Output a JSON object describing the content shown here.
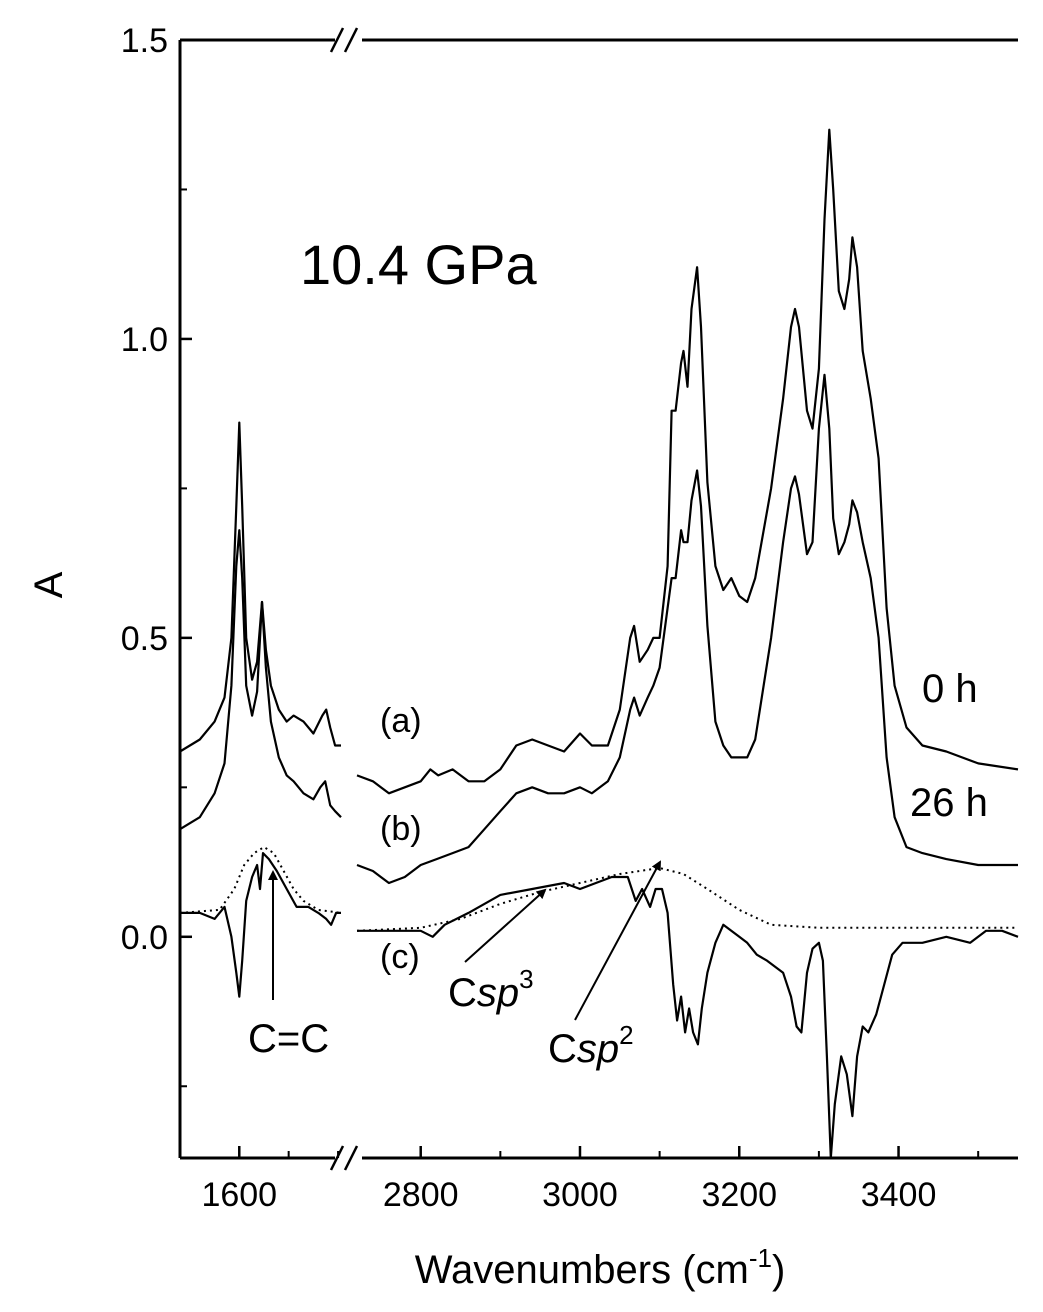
{
  "chart_data": {
    "type": "line",
    "title": "10.4 GPa",
    "xlabel": "Wavenumbers (cm",
    "xlabel_sup": "-1",
    "xlabel_close": ")",
    "ylabel": "A",
    "ylim": [
      -0.37,
      1.5
    ],
    "y_ticks": [
      {
        "value": 0.0,
        "label": "0.0"
      },
      {
        "value": 0.5,
        "label": "0.5"
      },
      {
        "value": 1.0,
        "label": "1.0"
      },
      {
        "value": 1.5,
        "label": "1.5"
      }
    ],
    "x_break": true,
    "x_segments": [
      {
        "xlim": [
          1540,
          1705
        ],
        "ticks": [
          {
            "value": 1600,
            "label": "1600"
          }
        ],
        "minor": [
          1650,
          1700
        ]
      },
      {
        "xlim": [
          2720,
          3550
        ],
        "ticks": [
          {
            "value": 2800,
            "label": "2800"
          },
          {
            "value": 3000,
            "label": "3000"
          },
          {
            "value": 3200,
            "label": "3200"
          },
          {
            "value": 3400,
            "label": "3400"
          }
        ],
        "minor": [
          2900,
          3100,
          3300,
          3500
        ]
      }
    ],
    "series": [
      {
        "label": "(a)",
        "time": "0 h",
        "style": "solid",
        "seg1": [
          [
            1540,
            0.31
          ],
          [
            1560,
            0.33
          ],
          [
            1575,
            0.36
          ],
          [
            1585,
            0.4
          ],
          [
            1592,
            0.5
          ],
          [
            1597,
            0.72
          ],
          [
            1600,
            0.86
          ],
          [
            1603,
            0.72
          ],
          [
            1607,
            0.5
          ],
          [
            1613,
            0.43
          ],
          [
            1618,
            0.46
          ],
          [
            1623,
            0.56
          ],
          [
            1627,
            0.48
          ],
          [
            1632,
            0.42
          ],
          [
            1640,
            0.38
          ],
          [
            1648,
            0.36
          ],
          [
            1655,
            0.37
          ],
          [
            1665,
            0.36
          ],
          [
            1675,
            0.34
          ],
          [
            1684,
            0.37
          ],
          [
            1688,
            0.38
          ],
          [
            1692,
            0.35
          ],
          [
            1697,
            0.32
          ],
          [
            1703,
            0.32
          ]
        ],
        "seg2": [
          [
            2720,
            0.27
          ],
          [
            2740,
            0.26
          ],
          [
            2760,
            0.24
          ],
          [
            2780,
            0.25
          ],
          [
            2800,
            0.26
          ],
          [
            2812,
            0.28
          ],
          [
            2822,
            0.27
          ],
          [
            2840,
            0.28
          ],
          [
            2860,
            0.26
          ],
          [
            2880,
            0.26
          ],
          [
            2900,
            0.28
          ],
          [
            2920,
            0.32
          ],
          [
            2940,
            0.33
          ],
          [
            2960,
            0.32
          ],
          [
            2980,
            0.31
          ],
          [
            3000,
            0.34
          ],
          [
            3015,
            0.32
          ],
          [
            3035,
            0.32
          ],
          [
            3050,
            0.38
          ],
          [
            3063,
            0.5
          ],
          [
            3068,
            0.52
          ],
          [
            3075,
            0.46
          ],
          [
            3085,
            0.48
          ],
          [
            3092,
            0.5
          ],
          [
            3100,
            0.5
          ],
          [
            3110,
            0.62
          ],
          [
            3115,
            0.88
          ],
          [
            3120,
            0.88
          ],
          [
            3127,
            0.96
          ],
          [
            3130,
            0.98
          ],
          [
            3135,
            0.92
          ],
          [
            3140,
            1.05
          ],
          [
            3147,
            1.12
          ],
          [
            3152,
            1.02
          ],
          [
            3160,
            0.76
          ],
          [
            3170,
            0.62
          ],
          [
            3180,
            0.58
          ],
          [
            3190,
            0.6
          ],
          [
            3200,
            0.57
          ],
          [
            3210,
            0.56
          ],
          [
            3220,
            0.6
          ],
          [
            3240,
            0.75
          ],
          [
            3255,
            0.9
          ],
          [
            3265,
            1.02
          ],
          [
            3270,
            1.05
          ],
          [
            3275,
            1.02
          ],
          [
            3285,
            0.88
          ],
          [
            3292,
            0.85
          ],
          [
            3300,
            0.95
          ],
          [
            3307,
            1.2
          ],
          [
            3313,
            1.35
          ],
          [
            3318,
            1.25
          ],
          [
            3325,
            1.08
          ],
          [
            3332,
            1.05
          ],
          [
            3338,
            1.1
          ],
          [
            3342,
            1.17
          ],
          [
            3348,
            1.12
          ],
          [
            3355,
            0.98
          ],
          [
            3365,
            0.9
          ],
          [
            3375,
            0.8
          ],
          [
            3385,
            0.55
          ],
          [
            3395,
            0.42
          ],
          [
            3410,
            0.35
          ],
          [
            3430,
            0.32
          ],
          [
            3460,
            0.31
          ],
          [
            3500,
            0.29
          ],
          [
            3550,
            0.28
          ]
        ]
      },
      {
        "label": "(b)",
        "time": "26 h",
        "style": "solid",
        "seg1": [
          [
            1540,
            0.18
          ],
          [
            1560,
            0.2
          ],
          [
            1575,
            0.24
          ],
          [
            1585,
            0.29
          ],
          [
            1592,
            0.42
          ],
          [
            1597,
            0.62
          ],
          [
            1600,
            0.68
          ],
          [
            1603,
            0.6
          ],
          [
            1607,
            0.42
          ],
          [
            1613,
            0.37
          ],
          [
            1618,
            0.41
          ],
          [
            1623,
            0.56
          ],
          [
            1627,
            0.45
          ],
          [
            1632,
            0.36
          ],
          [
            1640,
            0.3
          ],
          [
            1648,
            0.27
          ],
          [
            1655,
            0.26
          ],
          [
            1665,
            0.24
          ],
          [
            1675,
            0.23
          ],
          [
            1682,
            0.25
          ],
          [
            1687,
            0.26
          ],
          [
            1692,
            0.22
          ],
          [
            1697,
            0.21
          ],
          [
            1703,
            0.2
          ]
        ],
        "seg2": [
          [
            2720,
            0.12
          ],
          [
            2740,
            0.11
          ],
          [
            2760,
            0.09
          ],
          [
            2780,
            0.1
          ],
          [
            2800,
            0.12
          ],
          [
            2820,
            0.13
          ],
          [
            2840,
            0.14
          ],
          [
            2860,
            0.15
          ],
          [
            2880,
            0.18
          ],
          [
            2900,
            0.21
          ],
          [
            2920,
            0.24
          ],
          [
            2940,
            0.25
          ],
          [
            2960,
            0.24
          ],
          [
            2980,
            0.24
          ],
          [
            3000,
            0.25
          ],
          [
            3015,
            0.24
          ],
          [
            3035,
            0.26
          ],
          [
            3050,
            0.3
          ],
          [
            3063,
            0.38
          ],
          [
            3068,
            0.4
          ],
          [
            3075,
            0.37
          ],
          [
            3085,
            0.4
          ],
          [
            3092,
            0.42
          ],
          [
            3100,
            0.45
          ],
          [
            3110,
            0.55
          ],
          [
            3115,
            0.6
          ],
          [
            3120,
            0.6
          ],
          [
            3127,
            0.68
          ],
          [
            3130,
            0.66
          ],
          [
            3135,
            0.66
          ],
          [
            3140,
            0.73
          ],
          [
            3147,
            0.78
          ],
          [
            3152,
            0.72
          ],
          [
            3160,
            0.52
          ],
          [
            3170,
            0.36
          ],
          [
            3180,
            0.32
          ],
          [
            3190,
            0.3
          ],
          [
            3200,
            0.3
          ],
          [
            3210,
            0.3
          ],
          [
            3220,
            0.33
          ],
          [
            3240,
            0.5
          ],
          [
            3255,
            0.66
          ],
          [
            3265,
            0.75
          ],
          [
            3270,
            0.77
          ],
          [
            3275,
            0.74
          ],
          [
            3285,
            0.64
          ],
          [
            3292,
            0.66
          ],
          [
            3300,
            0.85
          ],
          [
            3307,
            0.94
          ],
          [
            3313,
            0.85
          ],
          [
            3318,
            0.7
          ],
          [
            3325,
            0.64
          ],
          [
            3332,
            0.66
          ],
          [
            3338,
            0.69
          ],
          [
            3342,
            0.73
          ],
          [
            3348,
            0.71
          ],
          [
            3355,
            0.66
          ],
          [
            3365,
            0.6
          ],
          [
            3375,
            0.5
          ],
          [
            3385,
            0.3
          ],
          [
            3395,
            0.2
          ],
          [
            3410,
            0.15
          ],
          [
            3430,
            0.14
          ],
          [
            3460,
            0.13
          ],
          [
            3500,
            0.12
          ],
          [
            3550,
            0.12
          ]
        ]
      },
      {
        "label": "(c)",
        "style": "solid",
        "seg1": [
          [
            1540,
            0.04
          ],
          [
            1560,
            0.04
          ],
          [
            1575,
            0.03
          ],
          [
            1585,
            0.05
          ],
          [
            1592,
            0.0
          ],
          [
            1597,
            -0.06
          ],
          [
            1600,
            -0.1
          ],
          [
            1603,
            -0.04
          ],
          [
            1607,
            0.06
          ],
          [
            1613,
            0.1
          ],
          [
            1618,
            0.12
          ],
          [
            1621,
            0.08
          ],
          [
            1624,
            0.14
          ],
          [
            1630,
            0.13
          ],
          [
            1638,
            0.11
          ],
          [
            1648,
            0.08
          ],
          [
            1658,
            0.05
          ],
          [
            1670,
            0.05
          ],
          [
            1680,
            0.04
          ],
          [
            1688,
            0.03
          ],
          [
            1693,
            0.02
          ],
          [
            1698,
            0.04
          ],
          [
            1703,
            0.04
          ]
        ],
        "seg2": [
          [
            2720,
            0.01
          ],
          [
            2760,
            0.01
          ],
          [
            2800,
            0.01
          ],
          [
            2815,
            0.0
          ],
          [
            2830,
            0.02
          ],
          [
            2860,
            0.04
          ],
          [
            2900,
            0.07
          ],
          [
            2940,
            0.08
          ],
          [
            2980,
            0.09
          ],
          [
            3000,
            0.08
          ],
          [
            3020,
            0.09
          ],
          [
            3040,
            0.1
          ],
          [
            3060,
            0.1
          ],
          [
            3070,
            0.06
          ],
          [
            3078,
            0.08
          ],
          [
            3088,
            0.05
          ],
          [
            3095,
            0.08
          ],
          [
            3103,
            0.08
          ],
          [
            3110,
            0.04
          ],
          [
            3117,
            -0.08
          ],
          [
            3122,
            -0.14
          ],
          [
            3127,
            -0.1
          ],
          [
            3132,
            -0.16
          ],
          [
            3137,
            -0.12
          ],
          [
            3142,
            -0.16
          ],
          [
            3148,
            -0.18
          ],
          [
            3153,
            -0.12
          ],
          [
            3160,
            -0.06
          ],
          [
            3170,
            -0.01
          ],
          [
            3180,
            0.02
          ],
          [
            3190,
            0.01
          ],
          [
            3200,
            0.0
          ],
          [
            3210,
            -0.01
          ],
          [
            3222,
            -0.03
          ],
          [
            3235,
            -0.04
          ],
          [
            3245,
            -0.05
          ],
          [
            3255,
            -0.06
          ],
          [
            3265,
            -0.1
          ],
          [
            3272,
            -0.15
          ],
          [
            3278,
            -0.16
          ],
          [
            3285,
            -0.06
          ],
          [
            3292,
            -0.02
          ],
          [
            3300,
            -0.01
          ],
          [
            3305,
            -0.04
          ],
          [
            3310,
            -0.2
          ],
          [
            3315,
            -0.37
          ],
          [
            3320,
            -0.28
          ],
          [
            3328,
            -0.2
          ],
          [
            3335,
            -0.23
          ],
          [
            3342,
            -0.3
          ],
          [
            3348,
            -0.2
          ],
          [
            3355,
            -0.15
          ],
          [
            3362,
            -0.16
          ],
          [
            3372,
            -0.13
          ],
          [
            3382,
            -0.08
          ],
          [
            3392,
            -0.03
          ],
          [
            3405,
            -0.01
          ],
          [
            3430,
            -0.01
          ],
          [
            3460,
            0.0
          ],
          [
            3490,
            -0.01
          ],
          [
            3510,
            0.01
          ],
          [
            3530,
            0.01
          ],
          [
            3550,
            0.0
          ]
        ]
      },
      {
        "label": "(c) fit",
        "style": "dotted",
        "seg1": [
          [
            1540,
            0.04
          ],
          [
            1580,
            0.045
          ],
          [
            1595,
            0.08
          ],
          [
            1605,
            0.12
          ],
          [
            1615,
            0.14
          ],
          [
            1625,
            0.15
          ],
          [
            1635,
            0.14
          ],
          [
            1645,
            0.11
          ],
          [
            1655,
            0.08
          ],
          [
            1665,
            0.06
          ],
          [
            1680,
            0.045
          ],
          [
            1703,
            0.04
          ]
        ],
        "seg2": [
          [
            2720,
            0.01
          ],
          [
            2800,
            0.015
          ],
          [
            2850,
            0.03
          ],
          [
            2900,
            0.055
          ],
          [
            2950,
            0.075
          ],
          [
            3000,
            0.09
          ],
          [
            3050,
            0.105
          ],
          [
            3100,
            0.115
          ],
          [
            3130,
            0.105
          ],
          [
            3160,
            0.08
          ],
          [
            3200,
            0.045
          ],
          [
            3240,
            0.02
          ],
          [
            3300,
            0.015
          ],
          [
            3400,
            0.015
          ],
          [
            3550,
            0.015
          ]
        ]
      }
    ],
    "curve_labels": {
      "a": "(a)",
      "b": "(b)",
      "c": "(c)",
      "t0": "0 h",
      "t26": "26 h"
    },
    "annotations": {
      "cc": "C=C",
      "csp3_base": "C",
      "csp3_italic": "sp",
      "csp3_sup": "3",
      "csp2_base": "C",
      "csp2_italic": "sp",
      "csp2_sup": "2"
    }
  }
}
